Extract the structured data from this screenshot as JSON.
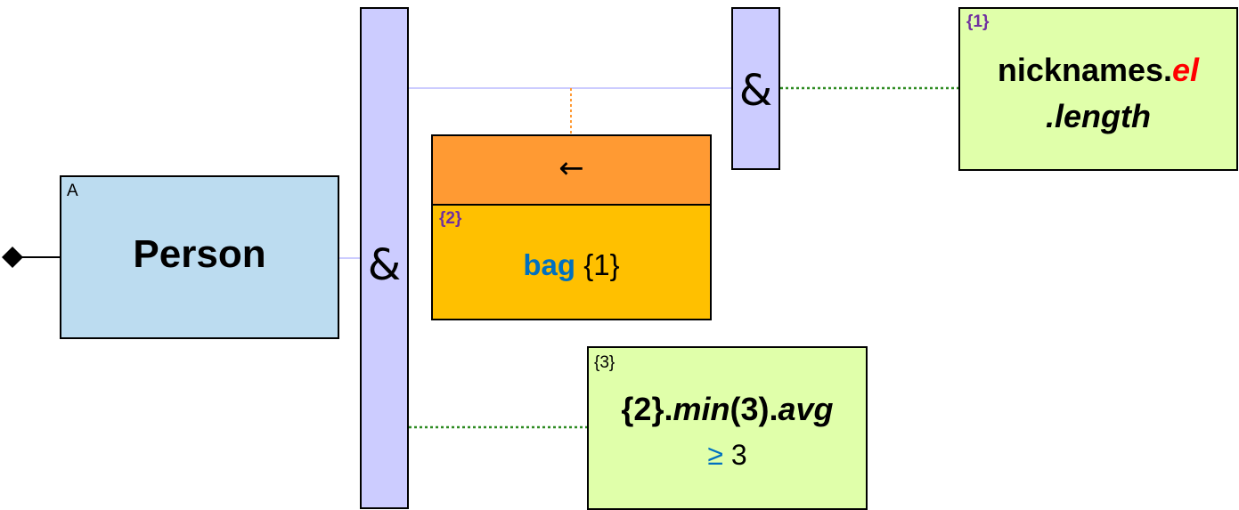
{
  "person": {
    "tag": "A",
    "label": "Person"
  },
  "and_main": {
    "symbol": "&"
  },
  "and_small": {
    "symbol": "&"
  },
  "operator": {
    "arrow": "←",
    "tag": "{2}",
    "keyword": "bag",
    "arg": "{1}"
  },
  "nicknames": {
    "tag": "{1}",
    "prefix": "nicknames.",
    "el": "el",
    "length": ".length"
  },
  "condition": {
    "tag": "{3}",
    "ref": "{2}",
    "dot1": ".",
    "min": "min",
    "min_arg": "(3)",
    "dot2": ".",
    "avg": "avg",
    "op": "≥",
    "value": "3"
  },
  "colors": {
    "person_fill": "#bcdcf0",
    "and_fill": "#ccccff",
    "operator_header": "#ff9a33",
    "operator_body": "#ffc000",
    "condition_fill": "#e0ffaa",
    "keyword": "#0070c0",
    "tag_purple": "#7030a0",
    "accent_red": "#ff0000"
  }
}
